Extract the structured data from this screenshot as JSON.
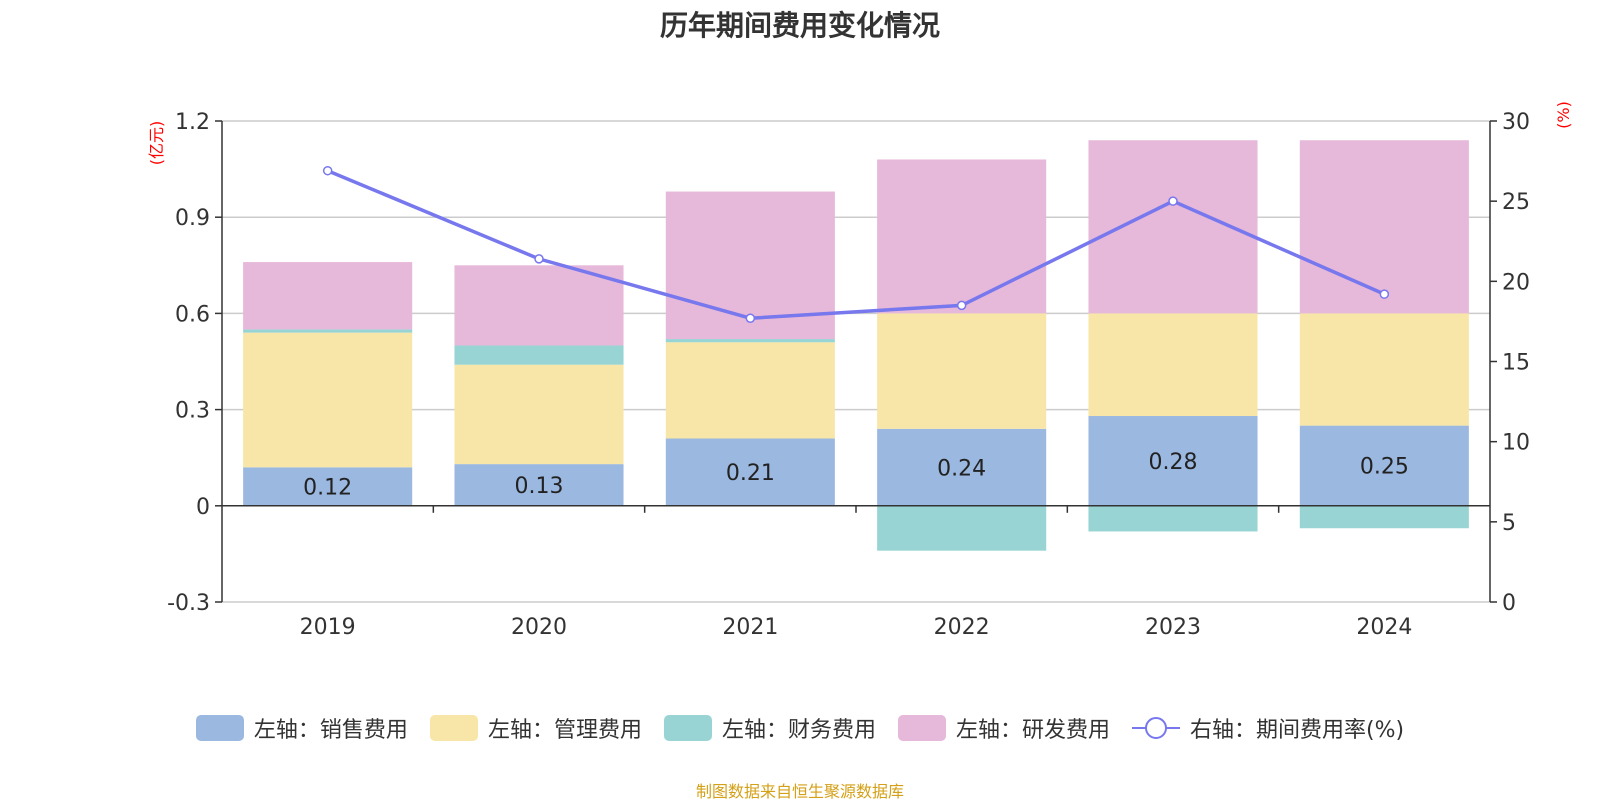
{
  "title": "历年期间费用变化情况",
  "source": "制图数据来自恒生聚源数据库",
  "source_color": "#d4a017",
  "chart_data": {
    "type": "bar",
    "stacked": true,
    "categories": [
      "2019",
      "2020",
      "2021",
      "2022",
      "2023",
      "2024"
    ],
    "left_axis": {
      "unit": "(亿元)",
      "ylim": [
        -0.3,
        1.2
      ],
      "ticks": [
        -0.3,
        0,
        0.3,
        0.6,
        0.9,
        1.2
      ],
      "tick_labels": [
        "-0.3",
        "0",
        "0.3",
        "0.6",
        "0.9",
        "1.2"
      ]
    },
    "right_axis": {
      "unit": "(%)",
      "ylim": [
        0,
        30
      ],
      "ticks": [
        0,
        5,
        10,
        15,
        20,
        25,
        30
      ],
      "tick_labels": [
        "0",
        "5",
        "10",
        "15",
        "20",
        "25",
        "30"
      ]
    },
    "unit_color": "#ff0000",
    "grid": true,
    "series": [
      {
        "name": "左轴：销售费用",
        "axis": "left",
        "type": "bar",
        "color": "#9bb8e0",
        "values": [
          0.12,
          0.13,
          0.21,
          0.24,
          0.28,
          0.25
        ],
        "data_labels": [
          "0.12",
          "0.13",
          "0.21",
          "0.24",
          "0.28",
          "0.25"
        ]
      },
      {
        "name": "左轴：管理费用",
        "axis": "left",
        "type": "bar",
        "color": "#f7e6a7",
        "values": [
          0.42,
          0.31,
          0.3,
          0.36,
          0.32,
          0.35
        ]
      },
      {
        "name": "左轴：财务费用",
        "axis": "left",
        "type": "bar",
        "color": "#98d4d4",
        "values": [
          0.01,
          0.06,
          0.01,
          -0.14,
          -0.08,
          -0.07
        ]
      },
      {
        "name": "左轴：研发费用",
        "axis": "left",
        "type": "bar",
        "color": "#e6b8d9",
        "values": [
          0.21,
          0.25,
          0.46,
          0.48,
          0.54,
          0.54
        ]
      },
      {
        "name": "右轴：期间费用率(%)",
        "axis": "right",
        "type": "line",
        "color": "#7777ee",
        "values": [
          26.9,
          21.4,
          17.7,
          18.5,
          25.0,
          19.2
        ]
      }
    ],
    "legend_position": "bottom"
  }
}
